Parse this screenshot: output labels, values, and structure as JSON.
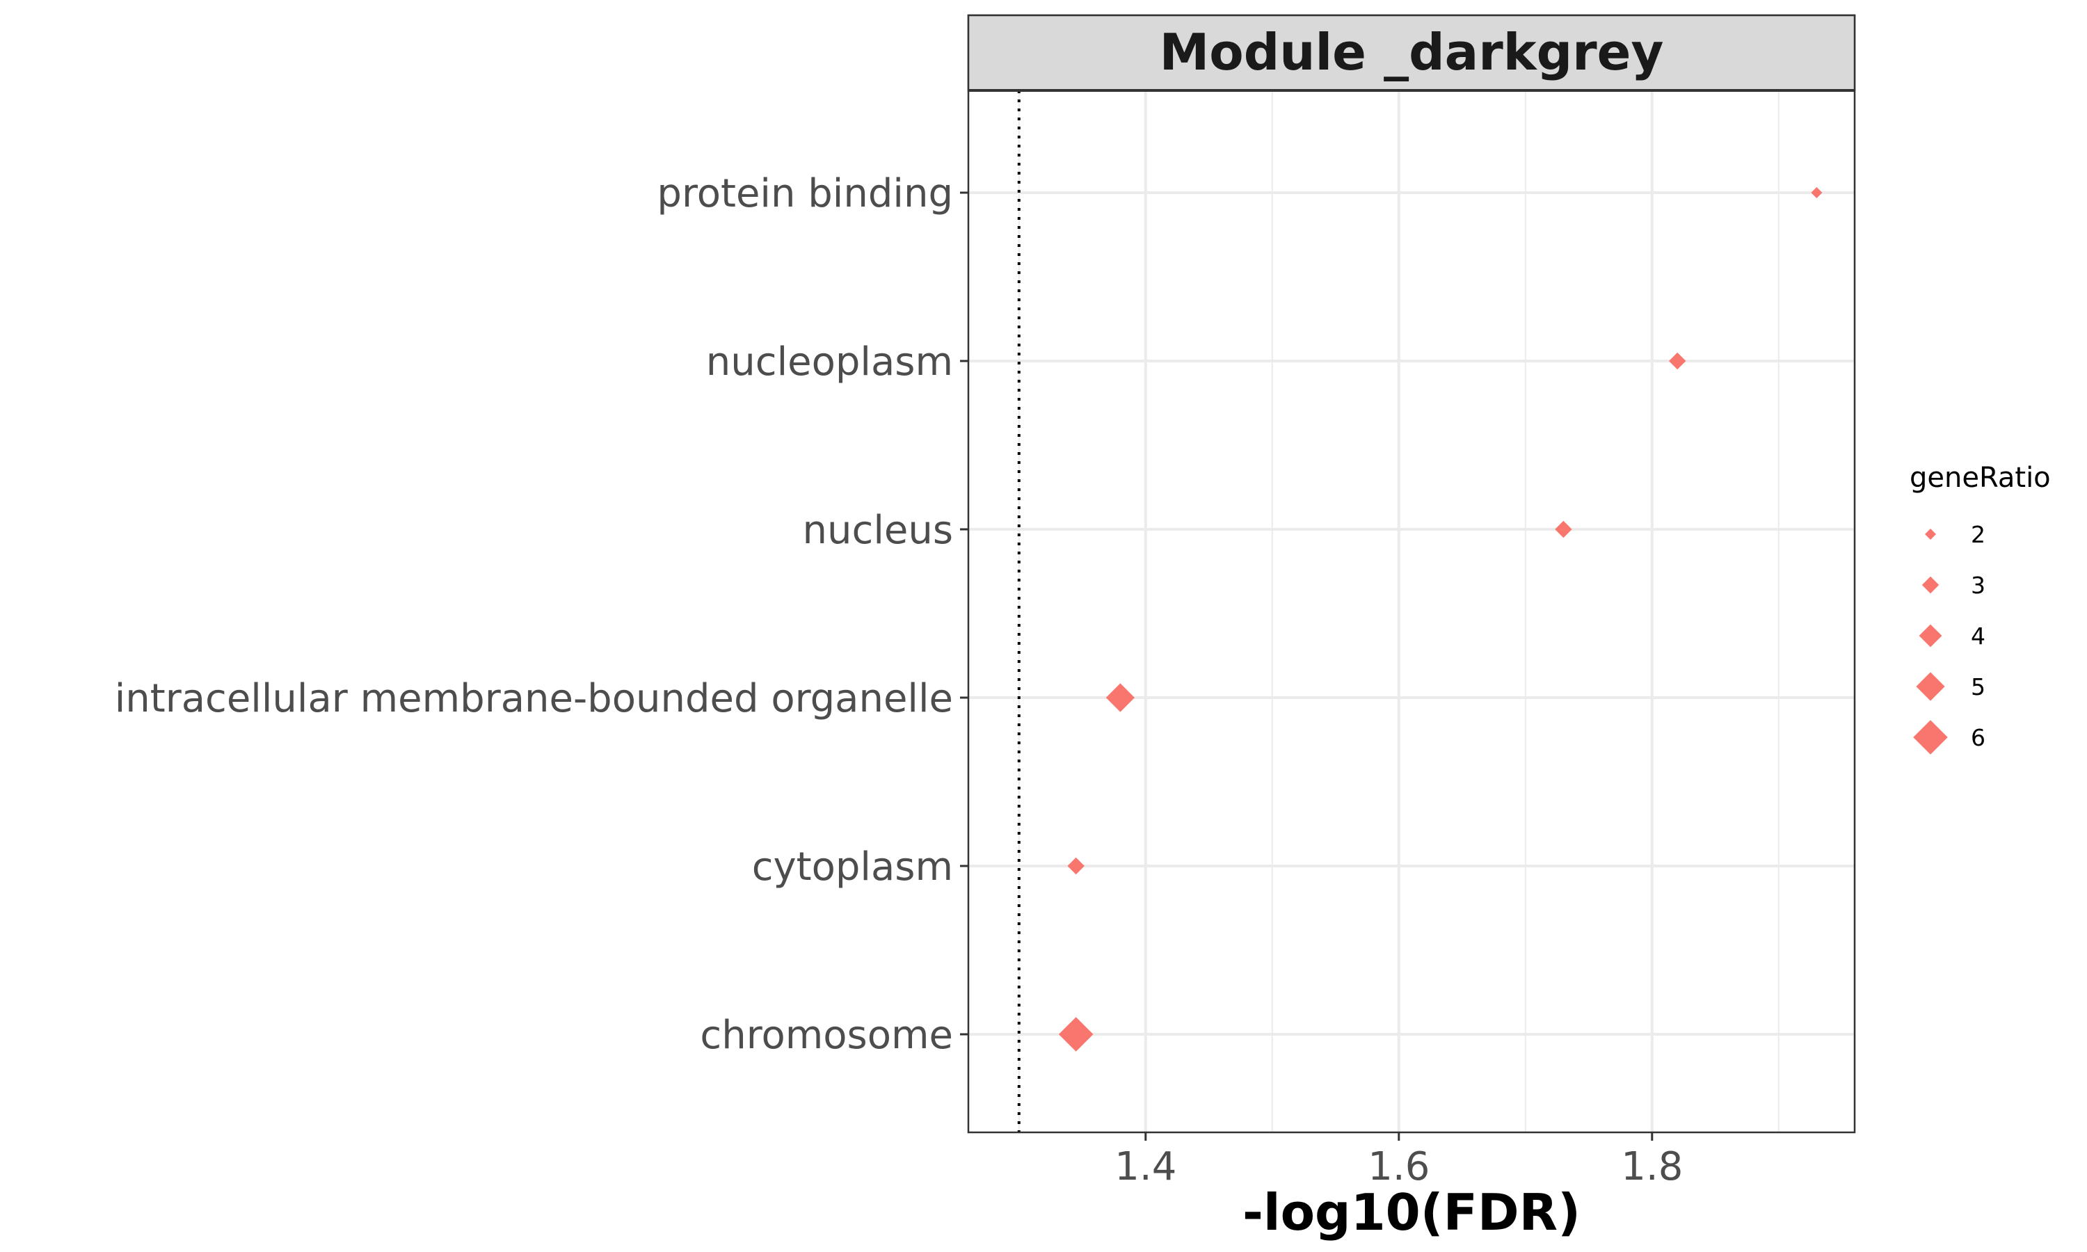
{
  "chart_data": {
    "type": "scatter",
    "title": "Module _darkgrey",
    "xlabel": "-log10(FDR)",
    "ylabel": "",
    "xlim": [
      1.26,
      1.96
    ],
    "x_ticks": [
      1.4,
      1.6,
      1.8
    ],
    "x_tick_labels": [
      "1.4",
      "1.6",
      "1.8"
    ],
    "categories": [
      "protein binding",
      "nucleoplasm",
      "nucleus",
      "intracellular membrane-bounded organelle",
      "cytoplasm",
      "chromosome"
    ],
    "points": [
      {
        "term": "protein binding",
        "x": 1.93,
        "geneRatio": 2
      },
      {
        "term": "nucleoplasm",
        "x": 1.82,
        "geneRatio": 3
      },
      {
        "term": "nucleus",
        "x": 1.73,
        "geneRatio": 3
      },
      {
        "term": "intracellular membrane-bounded organelle",
        "x": 1.38,
        "geneRatio": 5
      },
      {
        "term": "cytoplasm",
        "x": 1.345,
        "geneRatio": 3
      },
      {
        "term": "chromosome",
        "x": 1.345,
        "geneRatio": 6
      }
    ],
    "reference_line": {
      "x": 1.3,
      "style": "dotted"
    },
    "marker_shape": "diamond",
    "point_color": "#F8766D",
    "grid": true,
    "legend": {
      "title": "geneRatio",
      "placement": "right",
      "values": [
        2,
        3,
        4,
        5,
        6
      ],
      "labels": [
        "2",
        "3",
        "4",
        "5",
        "6"
      ]
    }
  },
  "colors": {
    "strip_fill": "#D9D9D9",
    "panel_border": "#333333",
    "grid": "#EBEBEB",
    "tick_text": "#4D4D4D",
    "points": "#F8766D"
  }
}
